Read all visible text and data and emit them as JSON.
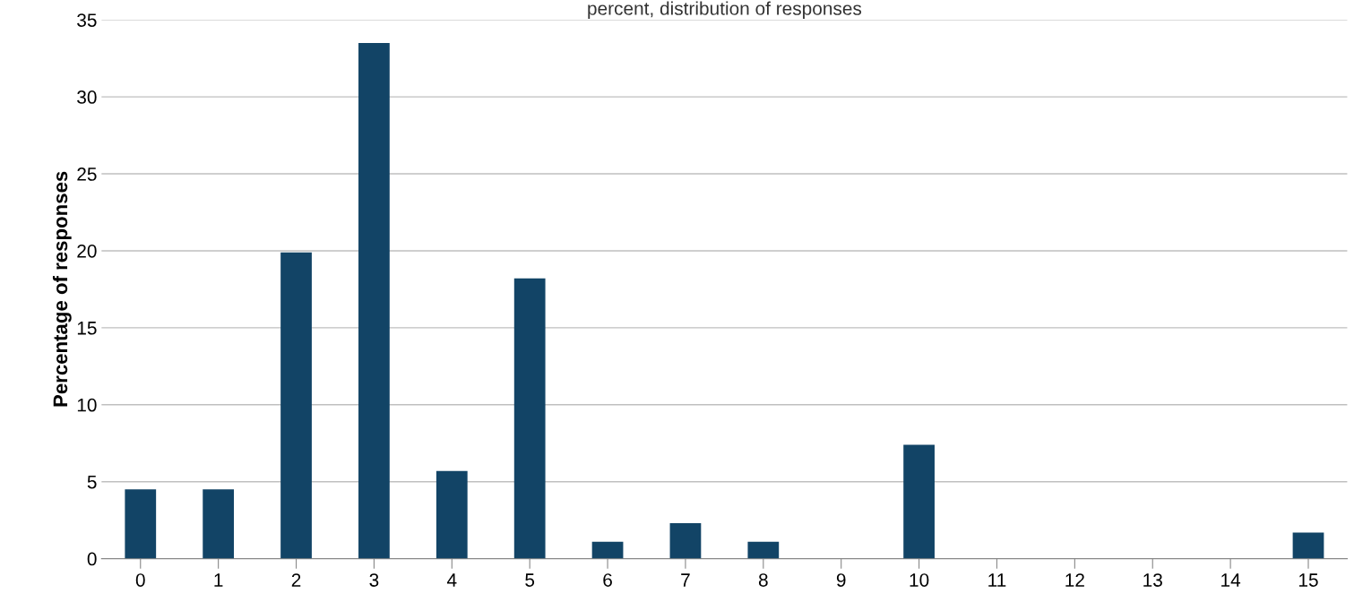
{
  "chart_data": {
    "type": "bar",
    "title": "percent, distribution of responses",
    "ylabel": "Percentage of responses",
    "categories": [
      "0",
      "1",
      "2",
      "3",
      "4",
      "5",
      "6",
      "7",
      "8",
      "9",
      "10",
      "11",
      "12",
      "13",
      "14",
      "15"
    ],
    "values": [
      4.5,
      4.5,
      19.9,
      33.5,
      5.7,
      18.2,
      1.1,
      2.3,
      1.1,
      0,
      7.4,
      0,
      0,
      0,
      0,
      1.7
    ],
    "color": "#124466",
    "ylim": [
      0,
      35
    ],
    "yticks": [
      0,
      5,
      10,
      15,
      20,
      25,
      30,
      35
    ],
    "grid": "y",
    "legend": false
  }
}
